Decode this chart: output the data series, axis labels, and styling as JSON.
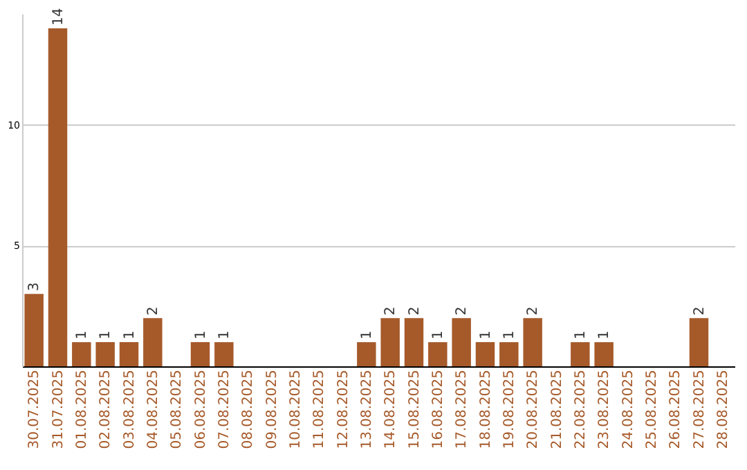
{
  "chart_data": {
    "type": "bar",
    "categories": [
      "30.07.2025",
      "31.07.2025",
      "01.08.2025",
      "02.08.2025",
      "03.08.2025",
      "04.08.2025",
      "05.08.2025",
      "06.08.2025",
      "07.08.2025",
      "08.08.2025",
      "09.08.2025",
      "10.08.2025",
      "11.08.2025",
      "12.08.2025",
      "13.08.2025",
      "14.08.2025",
      "15.08.2025",
      "16.08.2025",
      "17.08.2025",
      "18.08.2025",
      "19.08.2025",
      "20.08.2025",
      "21.08.2025",
      "22.08.2025",
      "23.08.2025",
      "24.08.2025",
      "25.08.2025",
      "26.08.2025",
      "27.08.2025",
      "28.08.2025"
    ],
    "values": [
      3,
      14,
      1,
      1,
      1,
      2,
      0,
      1,
      1,
      0,
      0,
      0,
      0,
      0,
      1,
      2,
      2,
      1,
      2,
      1,
      1,
      2,
      0,
      1,
      1,
      0,
      0,
      0,
      2,
      0
    ],
    "value_labels": [
      "3",
      "14",
      "1",
      "1",
      "1",
      "2",
      null,
      "1",
      "1",
      null,
      null,
      null,
      null,
      null,
      "1",
      "2",
      "2",
      "1",
      "2",
      "1",
      "1",
      "2",
      null,
      "1",
      "1",
      null,
      null,
      null,
      "2",
      null
    ],
    "color": "#a65a2a",
    "ylim": [
      0,
      14.6
    ],
    "yticks": [
      5,
      10
    ],
    "grid": "y"
  }
}
